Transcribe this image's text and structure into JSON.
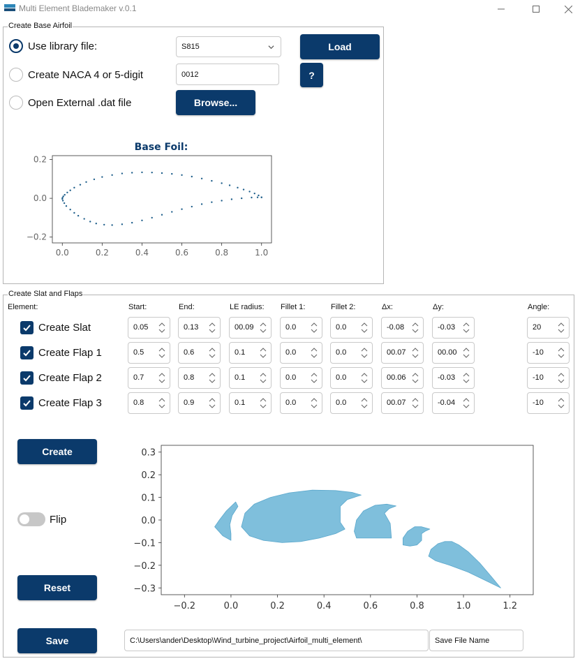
{
  "window": {
    "title": "Multi Element Blademaker v.0.1",
    "icons": [
      "app-icon",
      "minimize-icon",
      "maximize-icon",
      "close-icon"
    ]
  },
  "base_airfoil": {
    "group_title": "Create Base Airfoil",
    "options": [
      {
        "label": "Use library file:",
        "checked": true
      },
      {
        "label": "Create NACA 4 or 5-digit",
        "checked": false
      },
      {
        "label": "Open External .dat file",
        "checked": false
      }
    ],
    "library_select": "S815",
    "naca_value": "0012",
    "browse_label": "Browse...",
    "load_label": "Load",
    "help_label": "?",
    "plot_title": "Base Foil:"
  },
  "slats_flaps": {
    "group_title": "Create Slat and Flaps",
    "headers": [
      "Element:",
      "Start:",
      "End:",
      "LE radius:",
      "Fillet 1:",
      "Fillet 2:",
      "Δx:",
      "Δy:",
      "Angle:"
    ],
    "rows": [
      {
        "label": "Create Slat",
        "checked": true,
        "values": [
          "0.05",
          "0.13",
          "00.09",
          "0.0",
          "0.0",
          "-0.08",
          "-0.03",
          "20"
        ]
      },
      {
        "label": "Create Flap 1",
        "checked": true,
        "values": [
          "0.5",
          "0.6",
          "0.1",
          "0.0",
          "0.0",
          "00.07",
          "00.00",
          "-10"
        ]
      },
      {
        "label": "Create Flap 2",
        "checked": true,
        "values": [
          "0.7",
          "0.8",
          "0.1",
          "0.0",
          "0.0",
          "00.06",
          "-0.03",
          "-10"
        ]
      },
      {
        "label": "Create Flap 3",
        "checked": true,
        "values": [
          "0.8",
          "0.9",
          "0.1",
          "0.0",
          "0.0",
          "00.07",
          "-0.04",
          "-10"
        ]
      }
    ],
    "create_label": "Create",
    "flip_label": "Flip",
    "flip_on": false,
    "reset_label": "Reset",
    "save_label": "Save",
    "save_path": "C:\\Users\\ander\\Desktop\\Wind_turbine_project\\Airfoil_multi_element\\",
    "save_name_placeholder": "Save File Name"
  },
  "colors": {
    "accent": "#0b3a6b",
    "points": "#1f5f8b",
    "fill": "#7fbfdc"
  },
  "chart_data": [
    {
      "type": "scatter",
      "title": "Base Foil:",
      "xlim": [
        -0.05,
        1.05
      ],
      "ylim": [
        -0.23,
        0.22
      ],
      "xticks": [
        "0.0",
        "0.2",
        "0.4",
        "0.6",
        "0.8",
        "1.0"
      ],
      "yticks": [
        "0.2",
        "0.0",
        "−0.2"
      ],
      "upper": {
        "x": [
          1.0,
          0.985,
          0.965,
          0.94,
          0.91,
          0.88,
          0.84,
          0.8,
          0.75,
          0.7,
          0.65,
          0.6,
          0.55,
          0.5,
          0.45,
          0.4,
          0.35,
          0.3,
          0.25,
          0.2,
          0.16,
          0.12,
          0.09,
          0.06,
          0.04,
          0.025,
          0.012,
          0.005,
          0.001
        ],
        "y": [
          0.005,
          0.015,
          0.025,
          0.035,
          0.045,
          0.055,
          0.067,
          0.078,
          0.09,
          0.102,
          0.112,
          0.12,
          0.126,
          0.13,
          0.133,
          0.134,
          0.132,
          0.128,
          0.12,
          0.11,
          0.098,
          0.084,
          0.07,
          0.055,
          0.041,
          0.03,
          0.018,
          0.01,
          0.003
        ]
      },
      "lower": {
        "x": [
          0.0,
          0.003,
          0.01,
          0.02,
          0.04,
          0.06,
          0.08,
          0.11,
          0.14,
          0.17,
          0.21,
          0.25,
          0.3,
          0.35,
          0.4,
          0.45,
          0.5,
          0.55,
          0.6,
          0.65,
          0.7,
          0.75,
          0.8,
          0.85,
          0.9,
          0.95,
          0.98,
          1.0
        ],
        "y": [
          -0.003,
          -0.012,
          -0.025,
          -0.04,
          -0.058,
          -0.075,
          -0.09,
          -0.106,
          -0.12,
          -0.13,
          -0.136,
          -0.138,
          -0.134,
          -0.126,
          -0.114,
          -0.1,
          -0.085,
          -0.07,
          -0.056,
          -0.043,
          -0.03,
          -0.02,
          -0.012,
          -0.005,
          0.0,
          0.004,
          0.005,
          0.005
        ]
      }
    },
    {
      "type": "area",
      "xlim": [
        -0.3,
        1.3
      ],
      "ylim": [
        -0.33,
        0.33
      ],
      "xticks": [
        "−0.2",
        "0.0",
        "0.2",
        "0.4",
        "0.6",
        "0.8",
        "1.0",
        "1.2"
      ],
      "yticks": [
        "0.3",
        "0.2",
        "0.1",
        "0.0",
        "−0.1",
        "−0.2",
        "−0.3"
      ],
      "shapes": [
        {
          "name": "slat",
          "points": [
            [
              -0.07,
              -0.03
            ],
            [
              -0.05,
              0.0
            ],
            [
              -0.02,
              0.04
            ],
            [
              0.02,
              0.08
            ],
            [
              0.03,
              0.06
            ],
            [
              0.005,
              0.02
            ],
            [
              -0.005,
              -0.02
            ],
            [
              -0.0,
              -0.06
            ],
            [
              0.0,
              -0.09
            ],
            [
              -0.035,
              -0.07
            ]
          ]
        },
        {
          "name": "main",
          "points": [
            [
              0.045,
              -0.03
            ],
            [
              0.06,
              0.03
            ],
            [
              0.1,
              0.07
            ],
            [
              0.17,
              0.1
            ],
            [
              0.25,
              0.12
            ],
            [
              0.35,
              0.132
            ],
            [
              0.45,
              0.13
            ],
            [
              0.52,
              0.122
            ],
            [
              0.56,
              0.11
            ],
            [
              0.5,
              0.09
            ],
            [
              0.47,
              0.06
            ],
            [
              0.47,
              -0.01
            ],
            [
              0.49,
              -0.04
            ],
            [
              0.45,
              -0.06
            ],
            [
              0.38,
              -0.08
            ],
            [
              0.3,
              -0.095
            ],
            [
              0.22,
              -0.1
            ],
            [
              0.14,
              -0.09
            ],
            [
              0.08,
              -0.07
            ]
          ]
        },
        {
          "name": "flap-1",
          "points": [
            [
              0.54,
              -0.08
            ],
            [
              0.53,
              -0.05
            ],
            [
              0.54,
              0.0
            ],
            [
              0.57,
              0.04
            ],
            [
              0.62,
              0.065
            ],
            [
              0.67,
              0.07
            ],
            [
              0.71,
              0.062
            ],
            [
              0.68,
              0.05
            ],
            [
              0.66,
              0.03
            ],
            [
              0.685,
              -0.015
            ],
            [
              0.69,
              -0.08
            ]
          ]
        },
        {
          "name": "flap-2",
          "points": [
            [
              0.74,
              -0.11
            ],
            [
              0.74,
              -0.08
            ],
            [
              0.76,
              -0.05
            ],
            [
              0.79,
              -0.03
            ],
            [
              0.82,
              -0.03
            ],
            [
              0.855,
              -0.04
            ],
            [
              0.835,
              -0.05
            ],
            [
              0.82,
              -0.06
            ],
            [
              0.82,
              -0.09
            ],
            [
              0.8,
              -0.11
            ],
            [
              0.77,
              -0.115
            ]
          ]
        },
        {
          "name": "flap-3",
          "points": [
            [
              0.85,
              -0.16
            ],
            [
              0.86,
              -0.13
            ],
            [
              0.89,
              -0.105
            ],
            [
              0.92,
              -0.095
            ],
            [
              0.95,
              -0.095
            ],
            [
              0.98,
              -0.11
            ],
            [
              1.02,
              -0.14
            ],
            [
              1.07,
              -0.19
            ],
            [
              1.12,
              -0.25
            ],
            [
              1.16,
              -0.3
            ],
            [
              1.1,
              -0.27
            ],
            [
              1.02,
              -0.23
            ],
            [
              0.94,
              -0.2
            ],
            [
              0.88,
              -0.18
            ]
          ]
        }
      ]
    }
  ]
}
